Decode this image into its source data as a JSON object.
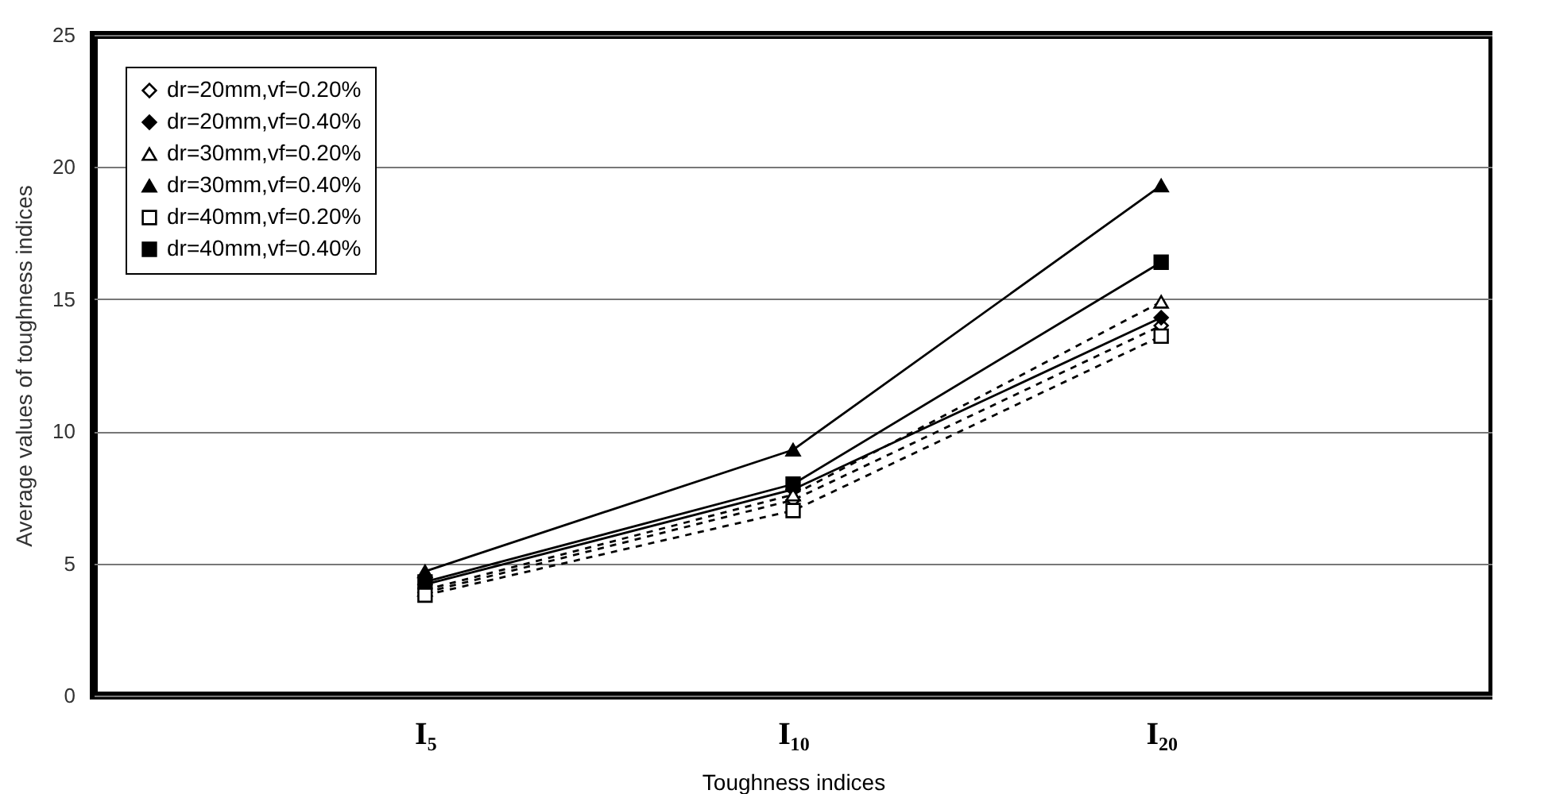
{
  "chart_data": {
    "type": "line",
    "xlabel": "Toughness indices",
    "ylabel": "Average values of toughness indices",
    "categories": [
      "I₅",
      "I₁₀",
      "I₂₀"
    ],
    "series": [
      {
        "name": "dr=20mm,vf=0.20%",
        "color": "#000000",
        "marker": "diamond",
        "line_style": "dashed",
        "values": [
          3.9,
          7.4,
          14.0
        ]
      },
      {
        "name": "dr=20mm,vf=0.40%",
        "color": "#000000",
        "marker": "diamond",
        "line_style": "solid",
        "values": [
          4.2,
          7.8,
          14.3
        ]
      },
      {
        "name": "dr=30mm,vf=0.20%",
        "color": "#000000",
        "marker": "triangle",
        "line_style": "dashed",
        "values": [
          4.0,
          7.6,
          14.9
        ]
      },
      {
        "name": "dr=30mm,vf=0.40%",
        "color": "#000000",
        "marker": "triangle",
        "line_style": "solid",
        "values": [
          4.7,
          9.3,
          19.3
        ]
      },
      {
        "name": "dr=40mm,vf=0.20%",
        "color": "#000000",
        "marker": "square",
        "line_style": "dashed",
        "values": [
          3.8,
          7.0,
          13.6
        ]
      },
      {
        "name": "dr=40mm,vf=0.40%",
        "color": "#000000",
        "marker": "square",
        "line_style": "solid",
        "values": [
          4.3,
          8.0,
          16.4
        ]
      }
    ],
    "ylim": [
      0,
      25
    ],
    "yticks": [
      0,
      5,
      10,
      15,
      20,
      25
    ],
    "grid": "y",
    "legend": "top left"
  }
}
